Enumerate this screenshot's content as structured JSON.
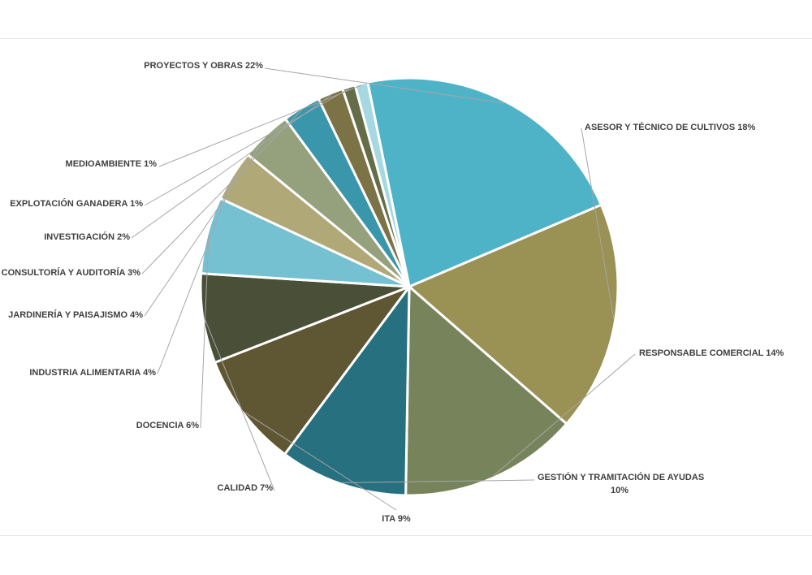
{
  "chart_data": {
    "type": "pie",
    "title": "",
    "start_slice": "PROYECTOS Y OBRAS",
    "direction": "clockwise",
    "slices": [
      {
        "name": "PROYECTOS Y OBRAS",
        "value": 22,
        "label": "PROYECTOS Y OBRAS 22%",
        "color": "#4fb3c8"
      },
      {
        "name": "ASESOR Y TÉCNICO DE CULTIVOS",
        "value": 18,
        "label": "ASESOR Y TÉCNICO DE CULTIVOS 18%",
        "color": "#9a9155"
      },
      {
        "name": "RESPONSABLE COMERCIAL",
        "value": 14,
        "label": "RESPONSABLE COMERCIAL 14%",
        "color": "#77845b"
      },
      {
        "name": "GESTIÓN Y TRAMITACIÓN DE AYUDAS",
        "value": 10,
        "label_lines": [
          "GESTIÓN Y TRAMITACIÓN DE AYUDAS",
          "10%"
        ],
        "color": "#277080"
      },
      {
        "name": "ITA",
        "value": 9,
        "label": "ITA 9%",
        "color": "#5f5633"
      },
      {
        "name": "CALIDAD",
        "value": 7,
        "label": "CALIDAD 7%",
        "color": "#4a4f37"
      },
      {
        "name": "DOCENCIA",
        "value": 6,
        "label": "DOCENCIA 6%",
        "color": "#75c1d2"
      },
      {
        "name": "INDUSTRIA ALIMENTARIA",
        "value": 4,
        "label": "INDUSTRIA ALIMENTARIA 4%",
        "color": "#b1a877"
      },
      {
        "name": "JARDINERÍA Y PAISAJISMO",
        "value": 4,
        "label": "JARDINERÍA Y PAISAJISMO 4%",
        "color": "#95a17c"
      },
      {
        "name": "CONSULTORÍA Y AUDITORÍA",
        "value": 3,
        "label": "CONSULTORÍA Y AUDITORÍA 3%",
        "color": "#3a96aa"
      },
      {
        "name": "INVESTIGACIÓN",
        "value": 2,
        "label": "INVESTIGACIÓN 2%",
        "color": "#7b7345"
      },
      {
        "name": "EXPLOTACIÓN GANADERA",
        "value": 1,
        "label": "EXPLOTACIÓN GANADERA 1%",
        "color": "#656c48"
      },
      {
        "name": "MEDIOAMBIENTE",
        "value": 1,
        "label": "MEDIOAMBIENTE 1%",
        "color": "#a6d8e2"
      }
    ]
  }
}
